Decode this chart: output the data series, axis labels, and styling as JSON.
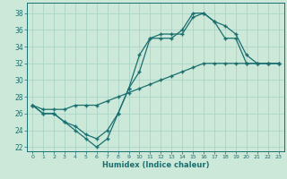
{
  "title": "",
  "xlabel": "Humidex (Indice chaleur)",
  "xlim": [
    -0.5,
    23.5
  ],
  "ylim": [
    21.5,
    39.2
  ],
  "xticks": [
    0,
    1,
    2,
    3,
    4,
    5,
    6,
    7,
    8,
    9,
    10,
    11,
    12,
    13,
    14,
    15,
    16,
    17,
    18,
    19,
    20,
    21,
    22,
    23
  ],
  "yticks": [
    22,
    24,
    26,
    28,
    30,
    32,
    34,
    36,
    38
  ],
  "bg_color": "#cce8d8",
  "line_color": "#1a7070",
  "grid_color": "#aad4c8",
  "line1_x": [
    0,
    1,
    2,
    3,
    4,
    5,
    6,
    7,
    8,
    9,
    10,
    11,
    12,
    13,
    14,
    15,
    16,
    17,
    18,
    19,
    20,
    21,
    22,
    23
  ],
  "line1_y": [
    27,
    26,
    26,
    25,
    24,
    23,
    22,
    23,
    26,
    29,
    31,
    35,
    35,
    35,
    36,
    38,
    38,
    37,
    35,
    35,
    32,
    32,
    32,
    32
  ],
  "line2_x": [
    0,
    1,
    2,
    3,
    4,
    5,
    6,
    7,
    8,
    9,
    10,
    11,
    12,
    13,
    14,
    15,
    16,
    17,
    18,
    19,
    20,
    21,
    22,
    23
  ],
  "line2_y": [
    27,
    26.5,
    26.5,
    26.5,
    27,
    27,
    27,
    27.5,
    28,
    28.5,
    29,
    29.5,
    30,
    30.5,
    31,
    31.5,
    32,
    32,
    32,
    32,
    32,
    32,
    32,
    32
  ],
  "line3_x": [
    0,
    1,
    2,
    3,
    4,
    5,
    6,
    7,
    8,
    9,
    10,
    11,
    12,
    13,
    14,
    15,
    16,
    17,
    18,
    19,
    20,
    21,
    22,
    23
  ],
  "line3_y": [
    27,
    26,
    26,
    25,
    24.5,
    23.5,
    23,
    24,
    26,
    29,
    33,
    35,
    35.5,
    35.5,
    35.5,
    37.5,
    38,
    37,
    36.5,
    35.5,
    33,
    32,
    32,
    32
  ]
}
